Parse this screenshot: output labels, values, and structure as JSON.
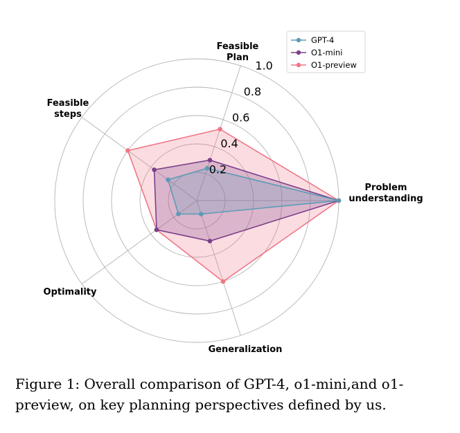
{
  "chart_data": {
    "type": "radar",
    "axes": [
      "Problem understanding",
      "Feasible Plan",
      "Feasible steps",
      "Optimality",
      "Generalization"
    ],
    "axis_label_lines": [
      [
        "Problem",
        "understanding"
      ],
      [
        "Feasible",
        "Plan"
      ],
      [
        "Feasible",
        "steps"
      ],
      [
        "Optimality"
      ],
      [
        "Generalization"
      ]
    ],
    "rlim": [
      0,
      1.0
    ],
    "r_ticks": [
      "0.2",
      "0.4",
      "0.6",
      "0.8",
      "1.0"
    ],
    "grid": true,
    "legend_position": "top-right",
    "series": [
      {
        "name": "GPT-4",
        "color": "#5b9bb6",
        "values": [
          1.0,
          0.24,
          0.25,
          0.16,
          0.1
        ]
      },
      {
        "name": "O1-mini",
        "color": "#7b3f8a",
        "values": [
          1.0,
          0.3,
          0.37,
          0.35,
          0.3
        ]
      },
      {
        "name": "O1-preview",
        "color": "#f07686",
        "values": [
          1.0,
          0.53,
          0.6,
          0.35,
          0.6
        ]
      }
    ]
  },
  "caption": "Figure 1: Overall comparison of GPT-4, o1-mini,and o1-preview, on key planning perspectives defined by us."
}
